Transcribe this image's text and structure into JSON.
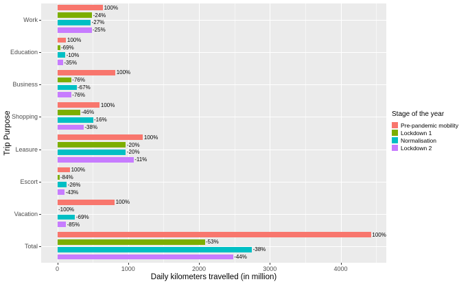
{
  "chart_data": {
    "type": "bar",
    "orientation": "horizontal",
    "title": "",
    "xlabel": "Daily kilometers travelled (in million)",
    "ylabel": "Trip Purpose",
    "categories": [
      "Work",
      "Education",
      "Business",
      "Shopping",
      "Leasure",
      "Escort",
      "Vacation",
      "Total"
    ],
    "x_ticks": [
      0,
      1000,
      2000,
      3000,
      4000
    ],
    "xlim": [
      -228,
      4644
    ],
    "grid": "on",
    "panel_background": "#EBEBEB",
    "gridline_color": "#FFFFFF",
    "legend_position": "right",
    "legend_title": "Stage of the year",
    "series": [
      {
        "name": "Pre-pandemic mobility",
        "color": "#F8766D",
        "values": [
          645,
          125,
          820,
          600,
          1210,
          180,
          810,
          4430
        ],
        "bar_labels": [
          "100%",
          "100%",
          "100%",
          "100%",
          "100%",
          "100%",
          "100%",
          "100%"
        ]
      },
      {
        "name": "Lockdown 1",
        "color": "#7CAE00",
        "values": [
          490,
          39,
          197,
          324,
          968,
          29,
          0,
          2082
        ],
        "bar_labels": [
          "-24%",
          "-69%",
          "-76%",
          "-46%",
          "-20%",
          "-84%",
          "-100%",
          "-53%"
        ]
      },
      {
        "name": "Normalisation",
        "color": "#00BFC4",
        "values": [
          471,
          113,
          271,
          504,
          968,
          133,
          251,
          2747
        ],
        "bar_labels": [
          "-27%",
          "-10%",
          "-67%",
          "-16%",
          "-20%",
          "-26%",
          "-69%",
          "-38%"
        ]
      },
      {
        "name": "Lockdown 2",
        "color": "#C77CFF",
        "values": [
          484,
          81,
          197,
          372,
          1077,
          103,
          122,
          2481
        ],
        "bar_labels": [
          "-25%",
          "-35%",
          "-76%",
          "-38%",
          "-11%",
          "-43%",
          "-85%",
          "-44%"
        ]
      }
    ]
  }
}
